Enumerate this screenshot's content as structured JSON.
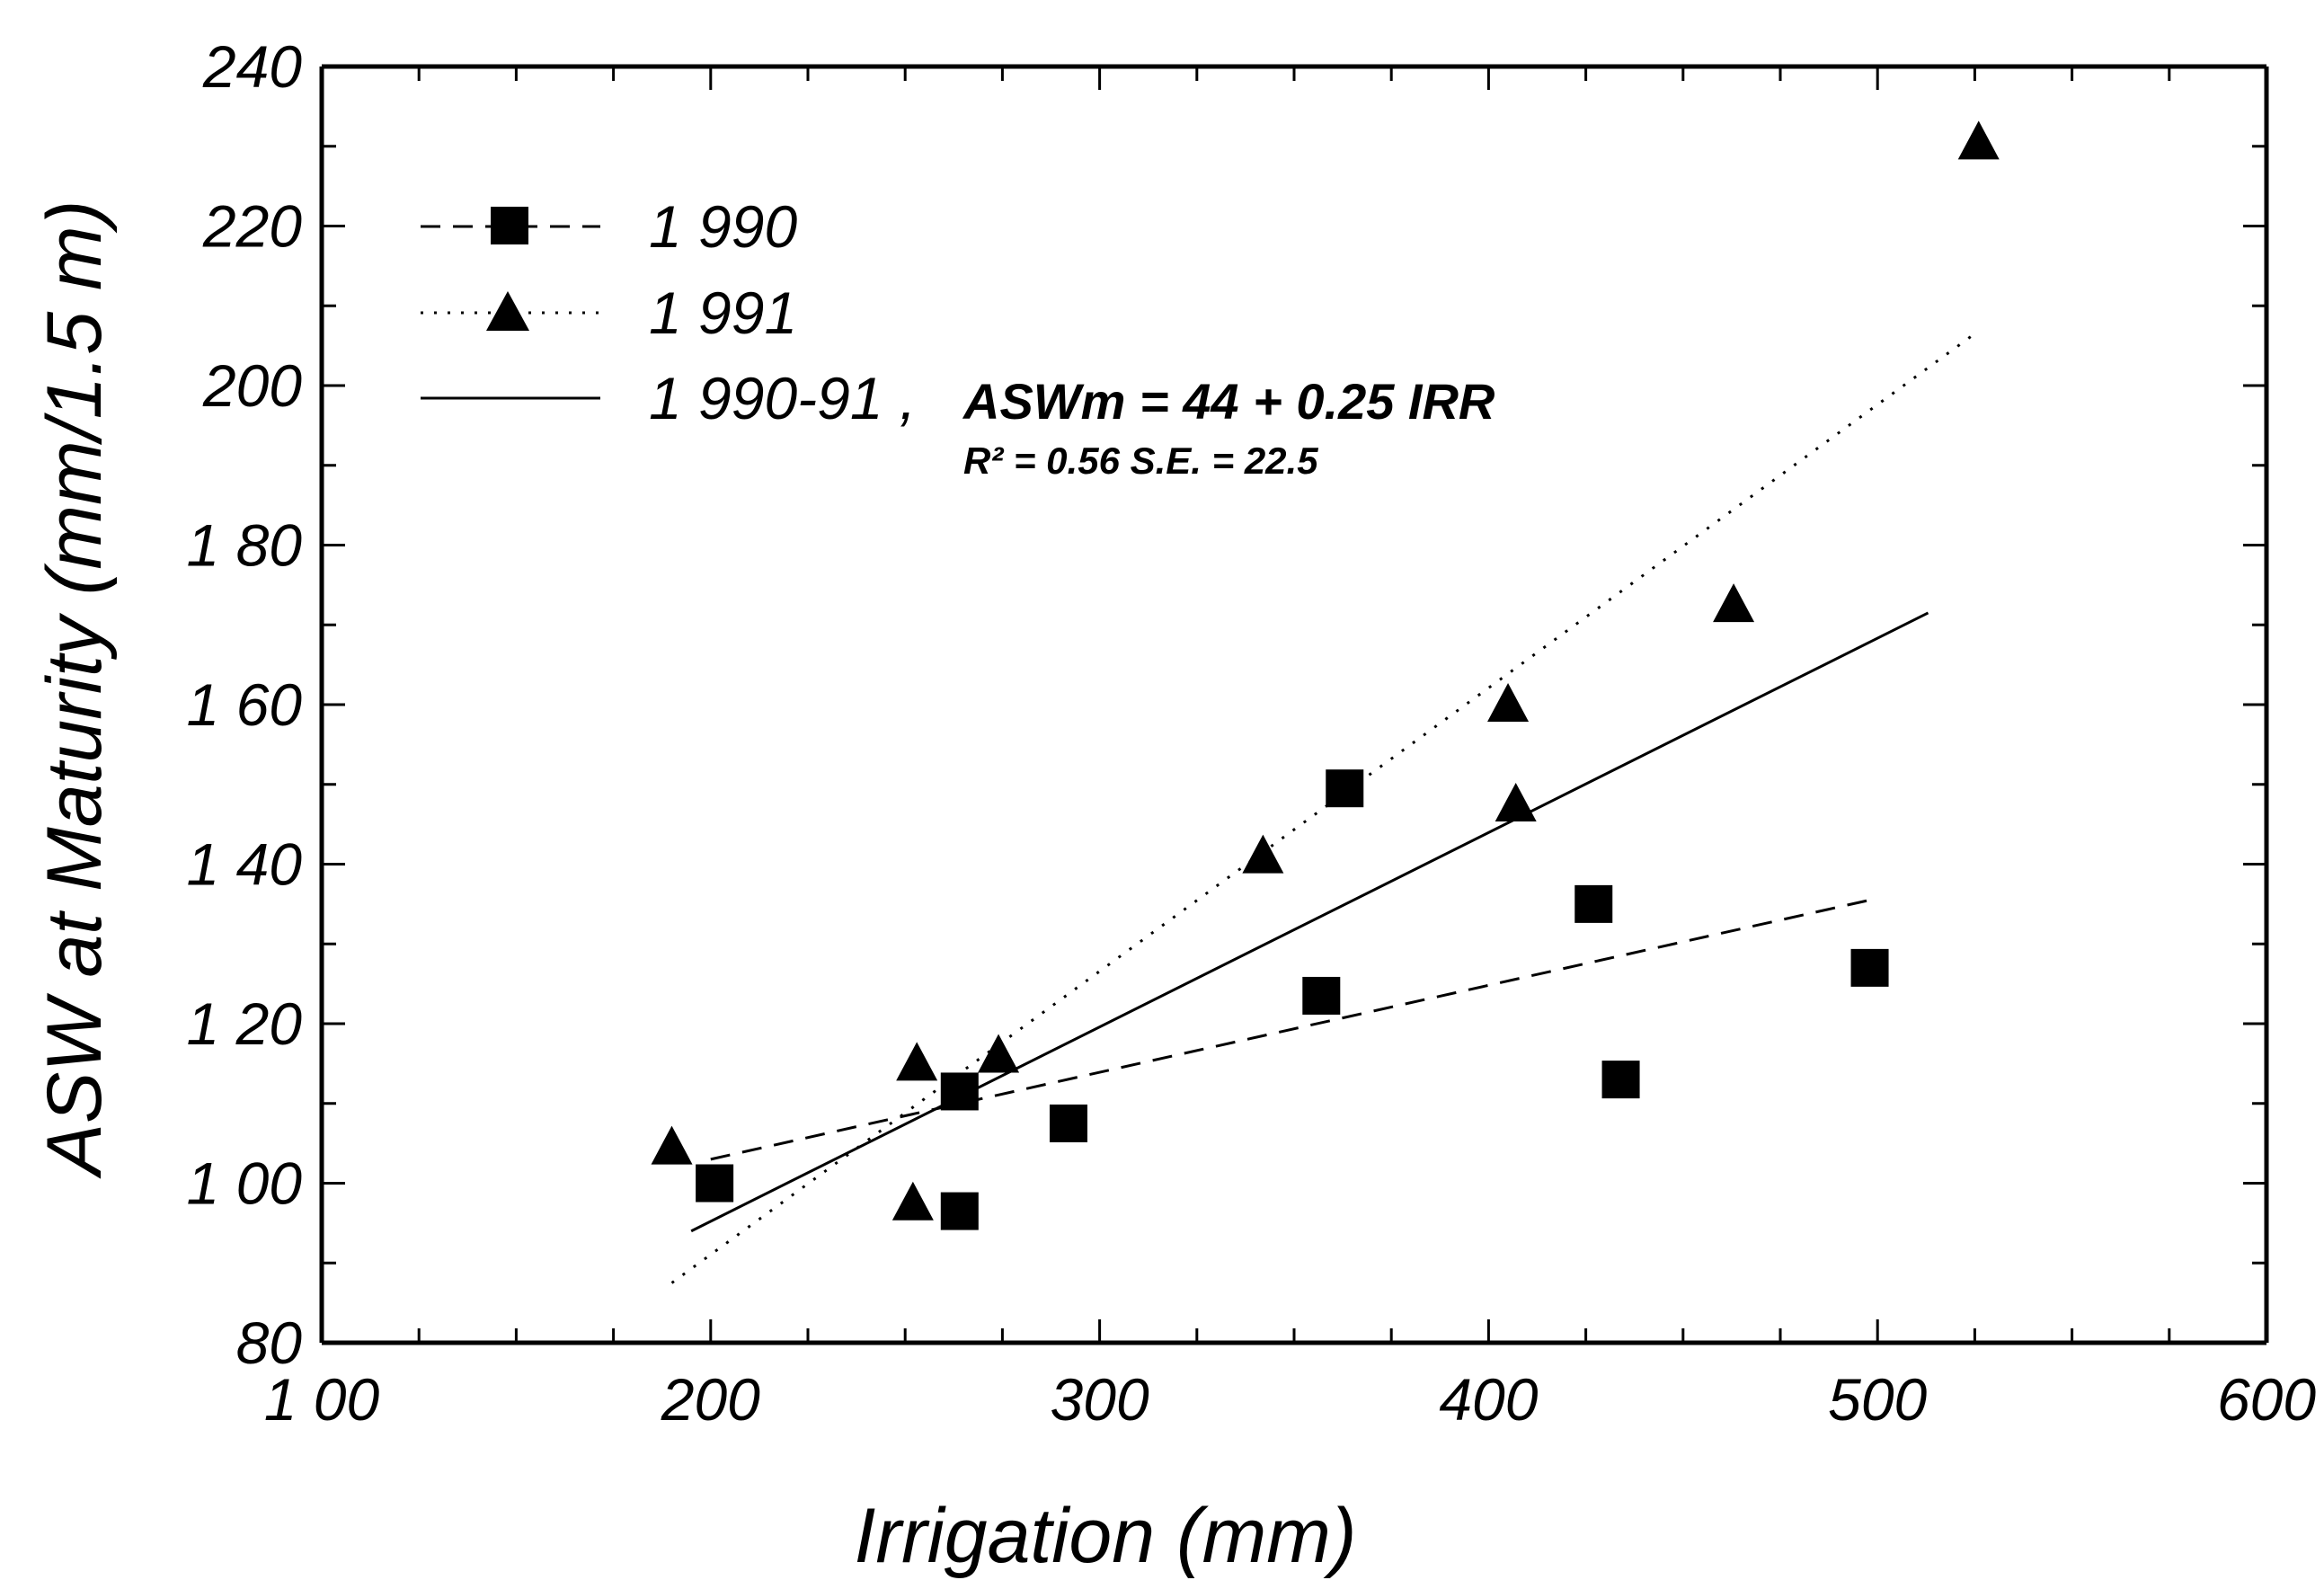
{
  "chart_data": {
    "type": "scatter",
    "xlabel": "Irrigation (mm)",
    "ylabel": "ASW at Maturity (mm/1.5 m)",
    "xlim": [
      100,
      600
    ],
    "ylim": [
      80,
      240
    ],
    "x_ticks": [
      "1 00",
      "200",
      "300",
      "400",
      "500",
      "600"
    ],
    "y_ticks": [
      "80",
      "1 00",
      "1 20",
      "1 40",
      "1 60",
      "1 80",
      "200",
      "220",
      "240"
    ],
    "grid": false,
    "legend_position": "top-left",
    "series": [
      {
        "name": "1 990",
        "marker": "square",
        "line_style": "dashed",
        "points": [
          [
            201,
            100
          ],
          [
            264,
            96.5
          ],
          [
            264,
            111.5
          ],
          [
            292,
            107.5
          ],
          [
            357,
            123.5
          ],
          [
            363,
            149.5
          ],
          [
            427,
            135
          ],
          [
            434,
            113
          ],
          [
            498,
            127
          ]
        ],
        "fit": {
          "x": [
            200,
            498
          ],
          "y": [
            103,
            135.5
          ]
        }
      },
      {
        "name": "1 991",
        "marker": "triangle",
        "line_style": "dotted",
        "points": [
          [
            190,
            104.5
          ],
          [
            252,
            97.5
          ],
          [
            253,
            115
          ],
          [
            274,
            116
          ],
          [
            342,
            141
          ],
          [
            405,
            160
          ],
          [
            407,
            147.5
          ],
          [
            463,
            172.5
          ],
          [
            526,
            230.5
          ]
        ],
        "fit": {
          "x": [
            190,
            525
          ],
          "y": [
            87.5,
            206.5
          ]
        }
      },
      {
        "name": "1 990-91 ,",
        "marker": "none",
        "line_style": "solid",
        "points": [],
        "fit": {
          "x": [
            195,
            513
          ],
          "y": [
            94,
            171.5
          ]
        }
      }
    ],
    "annotations": {
      "equation": "ASWm = 44 + 0.25 IRR",
      "stats": "R² = 0.56  S.E. = 22.5"
    }
  }
}
